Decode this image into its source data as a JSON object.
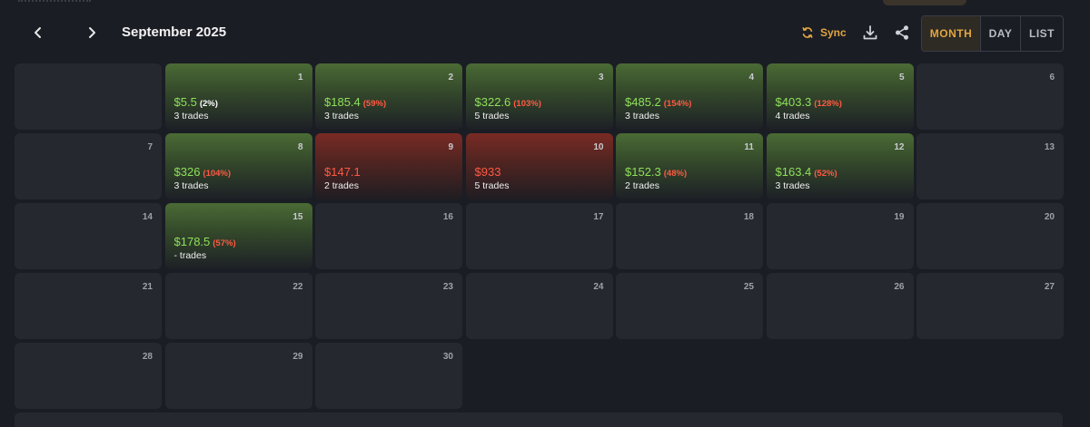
{
  "header": {
    "month_title": "September 2025",
    "sync_label": "Sync",
    "views": [
      "MONTH",
      "DAY",
      "LIST"
    ],
    "active_view": "MONTH",
    "colors": {
      "accent": "#e0a640",
      "profit": "#8fe05a",
      "loss": "#ff5a44"
    }
  },
  "calendar": {
    "leading_blank_cells": 1,
    "days": [
      {
        "day": "1",
        "status": "win",
        "amount": "$5.5",
        "amount_tone": "pos",
        "pct": "(2%)",
        "pct_tone": "white",
        "trades": "3 trades"
      },
      {
        "day": "2",
        "status": "win",
        "amount": "$185.4",
        "amount_tone": "pos",
        "pct": "(59%)",
        "pct_tone": "red",
        "trades": "3 trades"
      },
      {
        "day": "3",
        "status": "win",
        "amount": "$322.6",
        "amount_tone": "pos",
        "pct": "(103%)",
        "pct_tone": "red",
        "trades": "5 trades"
      },
      {
        "day": "4",
        "status": "win",
        "amount": "$485.2",
        "amount_tone": "pos",
        "pct": "(154%)",
        "pct_tone": "red",
        "trades": "3 trades"
      },
      {
        "day": "5",
        "status": "win",
        "amount": "$403.3",
        "amount_tone": "pos",
        "pct": "(128%)",
        "pct_tone": "red",
        "trades": "4 trades"
      },
      {
        "day": "6",
        "status": "none"
      },
      {
        "day": "7",
        "status": "none"
      },
      {
        "day": "8",
        "status": "win",
        "amount": "$326",
        "amount_tone": "pos",
        "pct": "(104%)",
        "pct_tone": "red",
        "trades": "3 trades"
      },
      {
        "day": "9",
        "status": "loss",
        "amount": "$147.1",
        "amount_tone": "neg",
        "pct": "",
        "pct_tone": "red",
        "trades": "2 trades"
      },
      {
        "day": "10",
        "status": "loss",
        "amount": "$933",
        "amount_tone": "neg",
        "pct": "",
        "pct_tone": "red",
        "trades": "5 trades"
      },
      {
        "day": "11",
        "status": "win",
        "amount": "$152.3",
        "amount_tone": "pos",
        "pct": "(48%)",
        "pct_tone": "red",
        "trades": "2 trades"
      },
      {
        "day": "12",
        "status": "win",
        "amount": "$163.4",
        "amount_tone": "pos",
        "pct": "(52%)",
        "pct_tone": "red",
        "trades": "3 trades"
      },
      {
        "day": "13",
        "status": "none"
      },
      {
        "day": "14",
        "status": "none"
      },
      {
        "day": "15",
        "status": "win",
        "amount": "$178.5",
        "amount_tone": "pos",
        "pct": "(57%)",
        "pct_tone": "red",
        "trades": "- trades"
      },
      {
        "day": "16",
        "status": "none"
      },
      {
        "day": "17",
        "status": "none"
      },
      {
        "day": "18",
        "status": "none"
      },
      {
        "day": "19",
        "status": "none"
      },
      {
        "day": "20",
        "status": "none"
      },
      {
        "day": "21",
        "status": "none"
      },
      {
        "day": "22",
        "status": "none"
      },
      {
        "day": "23",
        "status": "none"
      },
      {
        "day": "24",
        "status": "none"
      },
      {
        "day": "25",
        "status": "none"
      },
      {
        "day": "26",
        "status": "none"
      },
      {
        "day": "27",
        "status": "none"
      },
      {
        "day": "28",
        "status": "none"
      },
      {
        "day": "29",
        "status": "none"
      },
      {
        "day": "30",
        "status": "none"
      }
    ]
  }
}
